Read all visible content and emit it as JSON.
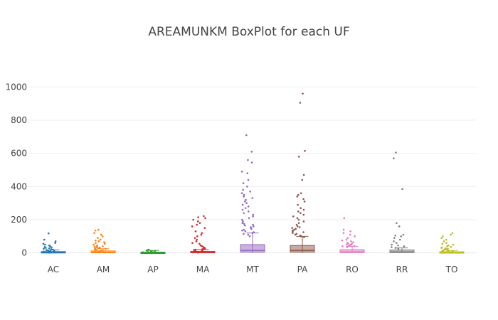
{
  "chart_data": {
    "type": "box",
    "title": "AREAMUNKM BoxPlot for each UF",
    "xlabel": "",
    "ylabel": "",
    "ylim": [
      -40,
      1160
    ],
    "yticks": [
      0,
      200,
      400,
      600,
      800,
      1000
    ],
    "categories": [
      "AC",
      "AM",
      "AP",
      "MA",
      "MT",
      "PA",
      "RO",
      "RR",
      "TO"
    ],
    "grid": true,
    "legend": "none",
    "series": [
      {
        "category": "AC",
        "color": "#1f77b4",
        "q1": 1,
        "median": 3,
        "q3": 8,
        "whisker_low": 0,
        "whisker_high": 18,
        "points": [
          2,
          3,
          4,
          5,
          6,
          7,
          8,
          10,
          12,
          14,
          17,
          20,
          22,
          25,
          28,
          30,
          33,
          36,
          40,
          45,
          50,
          55,
          60,
          70,
          80,
          118
        ]
      },
      {
        "category": "AM",
        "color": "#ff7f0e",
        "q1": 1,
        "median": 4,
        "q3": 12,
        "whisker_low": 0,
        "whisker_high": 25,
        "points": [
          3,
          5,
          8,
          10,
          14,
          18,
          22,
          25,
          28,
          30,
          32,
          35,
          38,
          40,
          42,
          45,
          50,
          55,
          60,
          65,
          70,
          75,
          80,
          90,
          100,
          110,
          120,
          135,
          140
        ]
      },
      {
        "category": "AP",
        "color": "#2ca02c",
        "q1": 1,
        "median": 2,
        "q3": 5,
        "whisker_low": 0,
        "whisker_high": 15,
        "points": [
          2,
          4,
          6,
          8,
          10,
          12,
          15,
          18,
          20
        ]
      },
      {
        "category": "MA",
        "color": "#d62728",
        "q1": 1,
        "median": 3,
        "q3": 9,
        "whisker_low": 0,
        "whisker_high": 20,
        "points": [
          2,
          4,
          5,
          7,
          9,
          12,
          15,
          18,
          20,
          22,
          25,
          28,
          30,
          35,
          40,
          45,
          55,
          60,
          70,
          80,
          90,
          100,
          110,
          120,
          130,
          150,
          160,
          170,
          180,
          190,
          200,
          210,
          215,
          222
        ]
      },
      {
        "category": "MT",
        "color": "#9467bd",
        "q1": 5,
        "median": 15,
        "q3": 50,
        "whisker_low": 0,
        "whisker_high": 120,
        "points": [
          100,
          110,
          115,
          120,
          125,
          130,
          135,
          140,
          145,
          150,
          155,
          160,
          165,
          170,
          175,
          180,
          190,
          200,
          210,
          220,
          230,
          240,
          250,
          260,
          270,
          280,
          290,
          300,
          310,
          320,
          330,
          340,
          350,
          360,
          370,
          380,
          400,
          420,
          440,
          480,
          490,
          545,
          560,
          610,
          710
        ]
      },
      {
        "category": "PA",
        "color": "#8c564b",
        "q1": 5,
        "median": 15,
        "q3": 45,
        "whisker_low": 0,
        "whisker_high": 100,
        "points": [
          95,
          100,
          105,
          110,
          115,
          120,
          125,
          130,
          135,
          140,
          145,
          150,
          155,
          160,
          170,
          180,
          190,
          200,
          210,
          220,
          230,
          240,
          250,
          260,
          270,
          290,
          310,
          325,
          340,
          350,
          360,
          440,
          470,
          580,
          615,
          905,
          960
        ]
      },
      {
        "category": "RO",
        "color": "#e377c2",
        "q1": 2,
        "median": 6,
        "q3": 20,
        "whisker_low": 0,
        "whisker_high": 40,
        "points": [
          35,
          40,
          42,
          45,
          48,
          50,
          52,
          55,
          58,
          60,
          65,
          70,
          75,
          80,
          90,
          100,
          110,
          120,
          130,
          140,
          210
        ]
      },
      {
        "category": "RR",
        "color": "#7f7f7f",
        "q1": 2,
        "median": 6,
        "q3": 18,
        "whisker_low": 0,
        "whisker_high": 30,
        "points": [
          25,
          30,
          35,
          40,
          45,
          50,
          60,
          70,
          80,
          90,
          100,
          105,
          110,
          160,
          180,
          385,
          570,
          605
        ]
      },
      {
        "category": "TO",
        "color": "#bcbd22",
        "q1": 1,
        "median": 3,
        "q3": 7,
        "whisker_low": 0,
        "whisker_high": 15,
        "points": [
          5,
          8,
          10,
          12,
          15,
          18,
          20,
          22,
          25,
          28,
          30,
          33,
          36,
          40,
          45,
          50,
          55,
          60,
          70,
          80,
          90,
          100,
          110,
          120
        ]
      }
    ]
  }
}
